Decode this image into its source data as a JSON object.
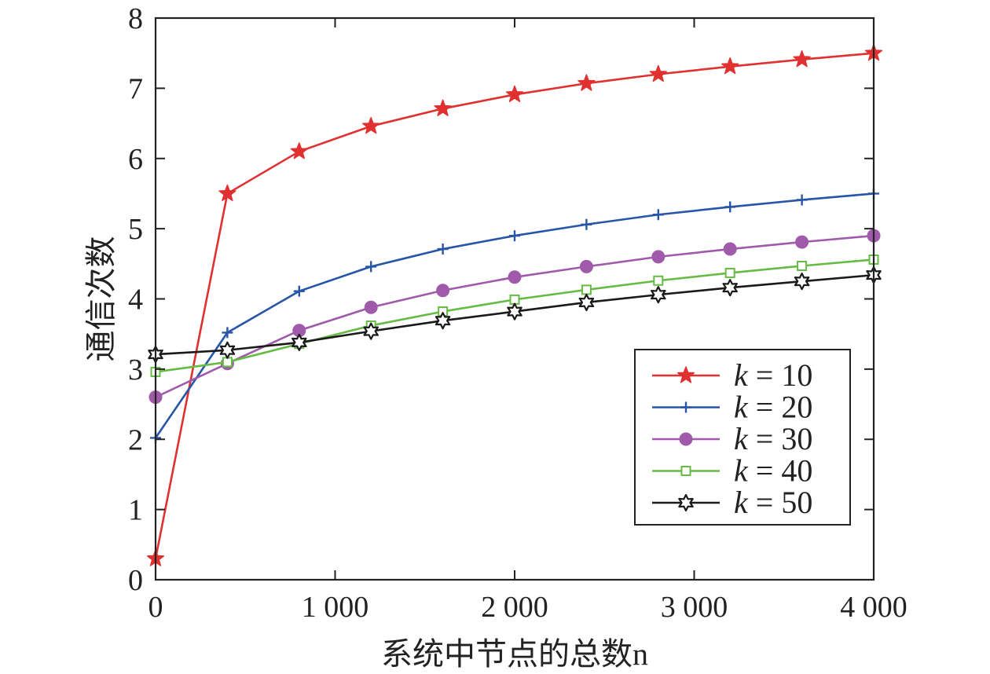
{
  "chart_data": {
    "type": "line",
    "xlabel": "系统中节点的总数n",
    "ylabel": "通信次数",
    "xlim": [
      0,
      4000
    ],
    "ylim": [
      0,
      8
    ],
    "x_ticks": [
      0,
      1000,
      2000,
      3000,
      4000
    ],
    "x_tick_labels": [
      "0",
      "1 000",
      "2 000",
      "3 000",
      "4 000"
    ],
    "y_ticks": [
      0,
      1,
      2,
      3,
      4,
      5,
      6,
      7,
      8
    ],
    "y_tick_labels": [
      "0",
      "1",
      "2",
      "3",
      "4",
      "5",
      "6",
      "7",
      "8"
    ],
    "grid": false,
    "legend_position": "bottom-right",
    "x": [
      0,
      400,
      800,
      1200,
      1600,
      2000,
      2400,
      2800,
      3200,
      3600,
      4000
    ],
    "series": [
      {
        "name": "k = 10",
        "color": "#e03030",
        "marker": "star5",
        "values": [
          0.3,
          5.5,
          6.1,
          6.46,
          6.71,
          6.91,
          7.07,
          7.2,
          7.31,
          7.41,
          7.5
        ]
      },
      {
        "name": "k = 20",
        "color": "#2855a8",
        "marker": "plus",
        "values": [
          2.02,
          3.52,
          4.11,
          4.46,
          4.71,
          4.9,
          5.06,
          5.2,
          5.31,
          5.41,
          5.5
        ]
      },
      {
        "name": "k = 30",
        "color": "#a05aaa",
        "marker": "circle",
        "values": [
          2.6,
          3.08,
          3.55,
          3.88,
          4.12,
          4.31,
          4.46,
          4.6,
          4.71,
          4.81,
          4.9
        ]
      },
      {
        "name": "k = 40",
        "color": "#66bb44",
        "marker": "square",
        "values": [
          2.96,
          3.1,
          3.36,
          3.62,
          3.82,
          3.99,
          4.13,
          4.26,
          4.37,
          4.47,
          4.56
        ]
      },
      {
        "name": "k = 50",
        "color": "#1a1a1a",
        "marker": "hexagram",
        "values": [
          3.21,
          3.27,
          3.38,
          3.54,
          3.69,
          3.82,
          3.95,
          4.06,
          4.16,
          4.25,
          4.34
        ]
      }
    ]
  }
}
